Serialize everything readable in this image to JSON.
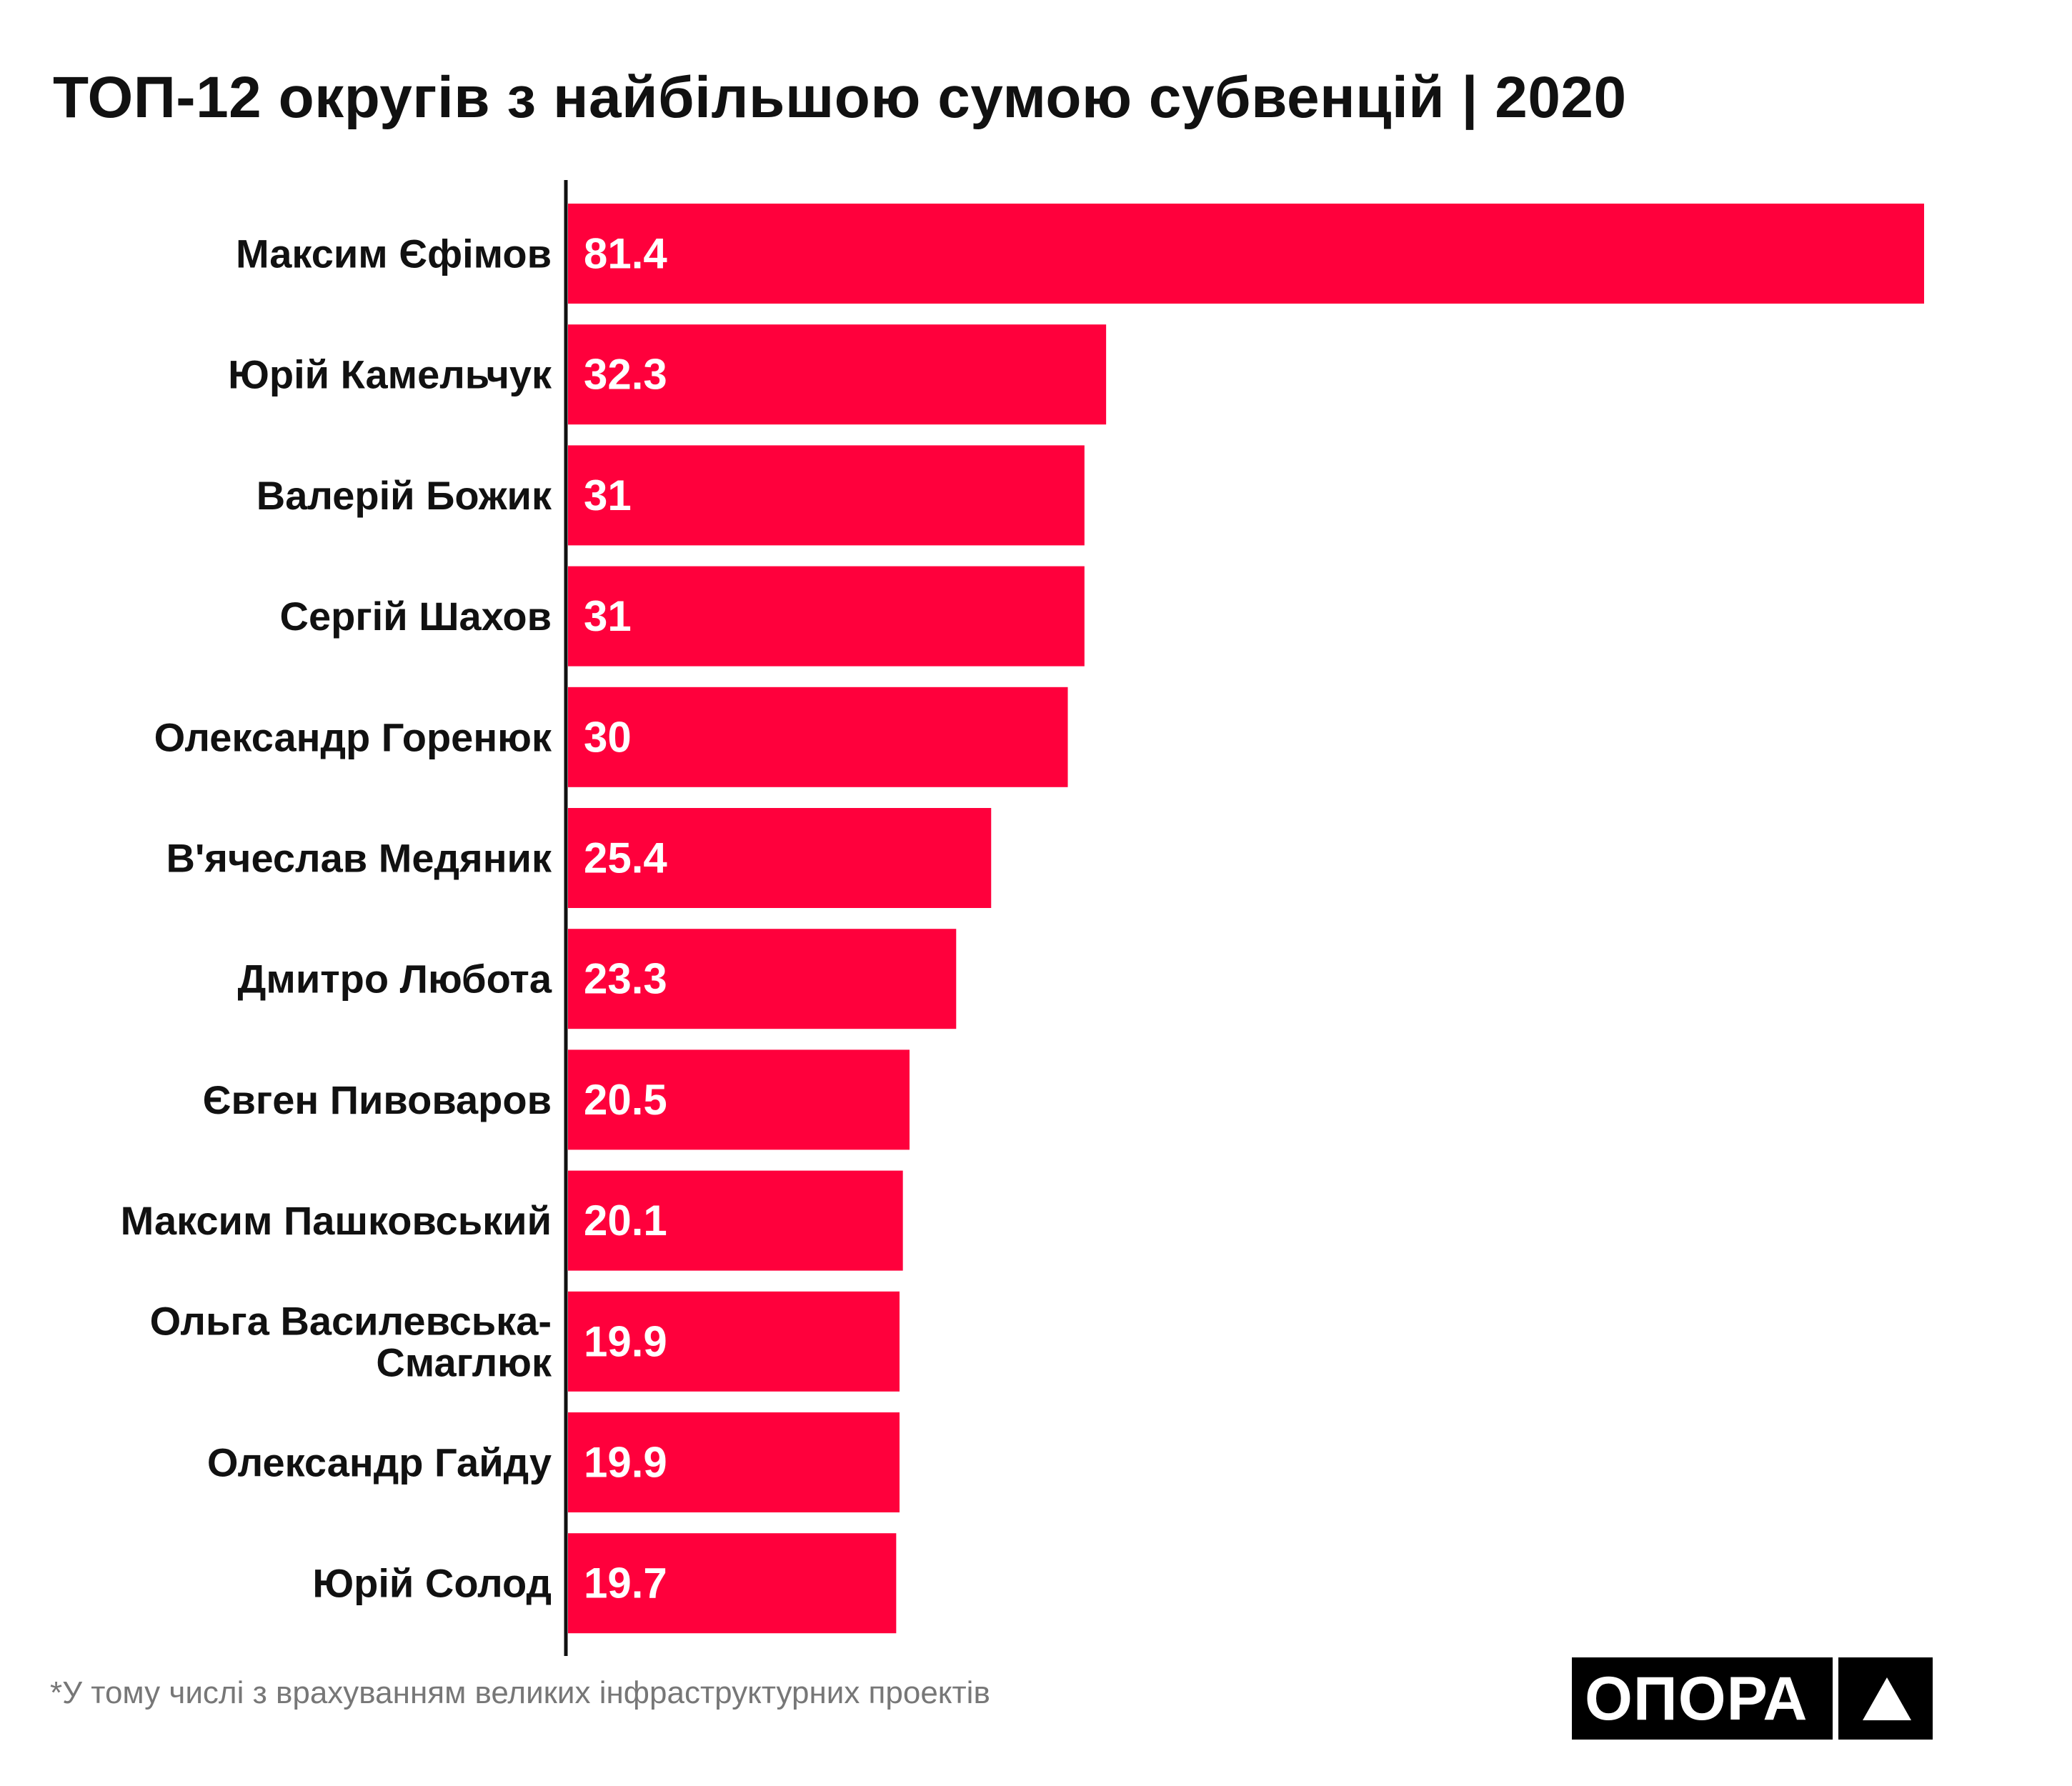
{
  "colors": {
    "bar": "#FF003C",
    "axis": "#111111",
    "text": "#111111",
    "value_text": "#FFFFFF"
  },
  "footnote": "*У тому числі з врахуванням великих інфраструктурних проектів",
  "logo": {
    "text": "ОПОРА",
    "icon": "triangle-icon"
  },
  "chart_data": {
    "type": "bar",
    "orientation": "horizontal",
    "title": "ТОП-12 округів з найбільшою сумою субвенцій | 2020",
    "xlabel": "",
    "ylabel": "",
    "grid": false,
    "legend": "none",
    "xlim": [
      0,
      81.4
    ],
    "categories": [
      [
        "Максим Єфімов"
      ],
      [
        "Юрій Камельчук"
      ],
      [
        "Валерій Божик"
      ],
      [
        "Сергій Шахов"
      ],
      [
        "Олександр Горенюк"
      ],
      [
        "В'ячеслав Медяник"
      ],
      [
        "Дмитро Любота"
      ],
      [
        "Євген Пивоваров"
      ],
      [
        "Максим Пашковський"
      ],
      [
        "Ольга Василевська-",
        "Смаглюк"
      ],
      [
        "Олександр Гайду"
      ],
      [
        "Юрій Солод"
      ]
    ],
    "values": [
      81.4,
      32.3,
      31,
      31,
      30,
      25.4,
      23.3,
      20.5,
      20.1,
      19.9,
      19.9,
      19.7
    ]
  }
}
